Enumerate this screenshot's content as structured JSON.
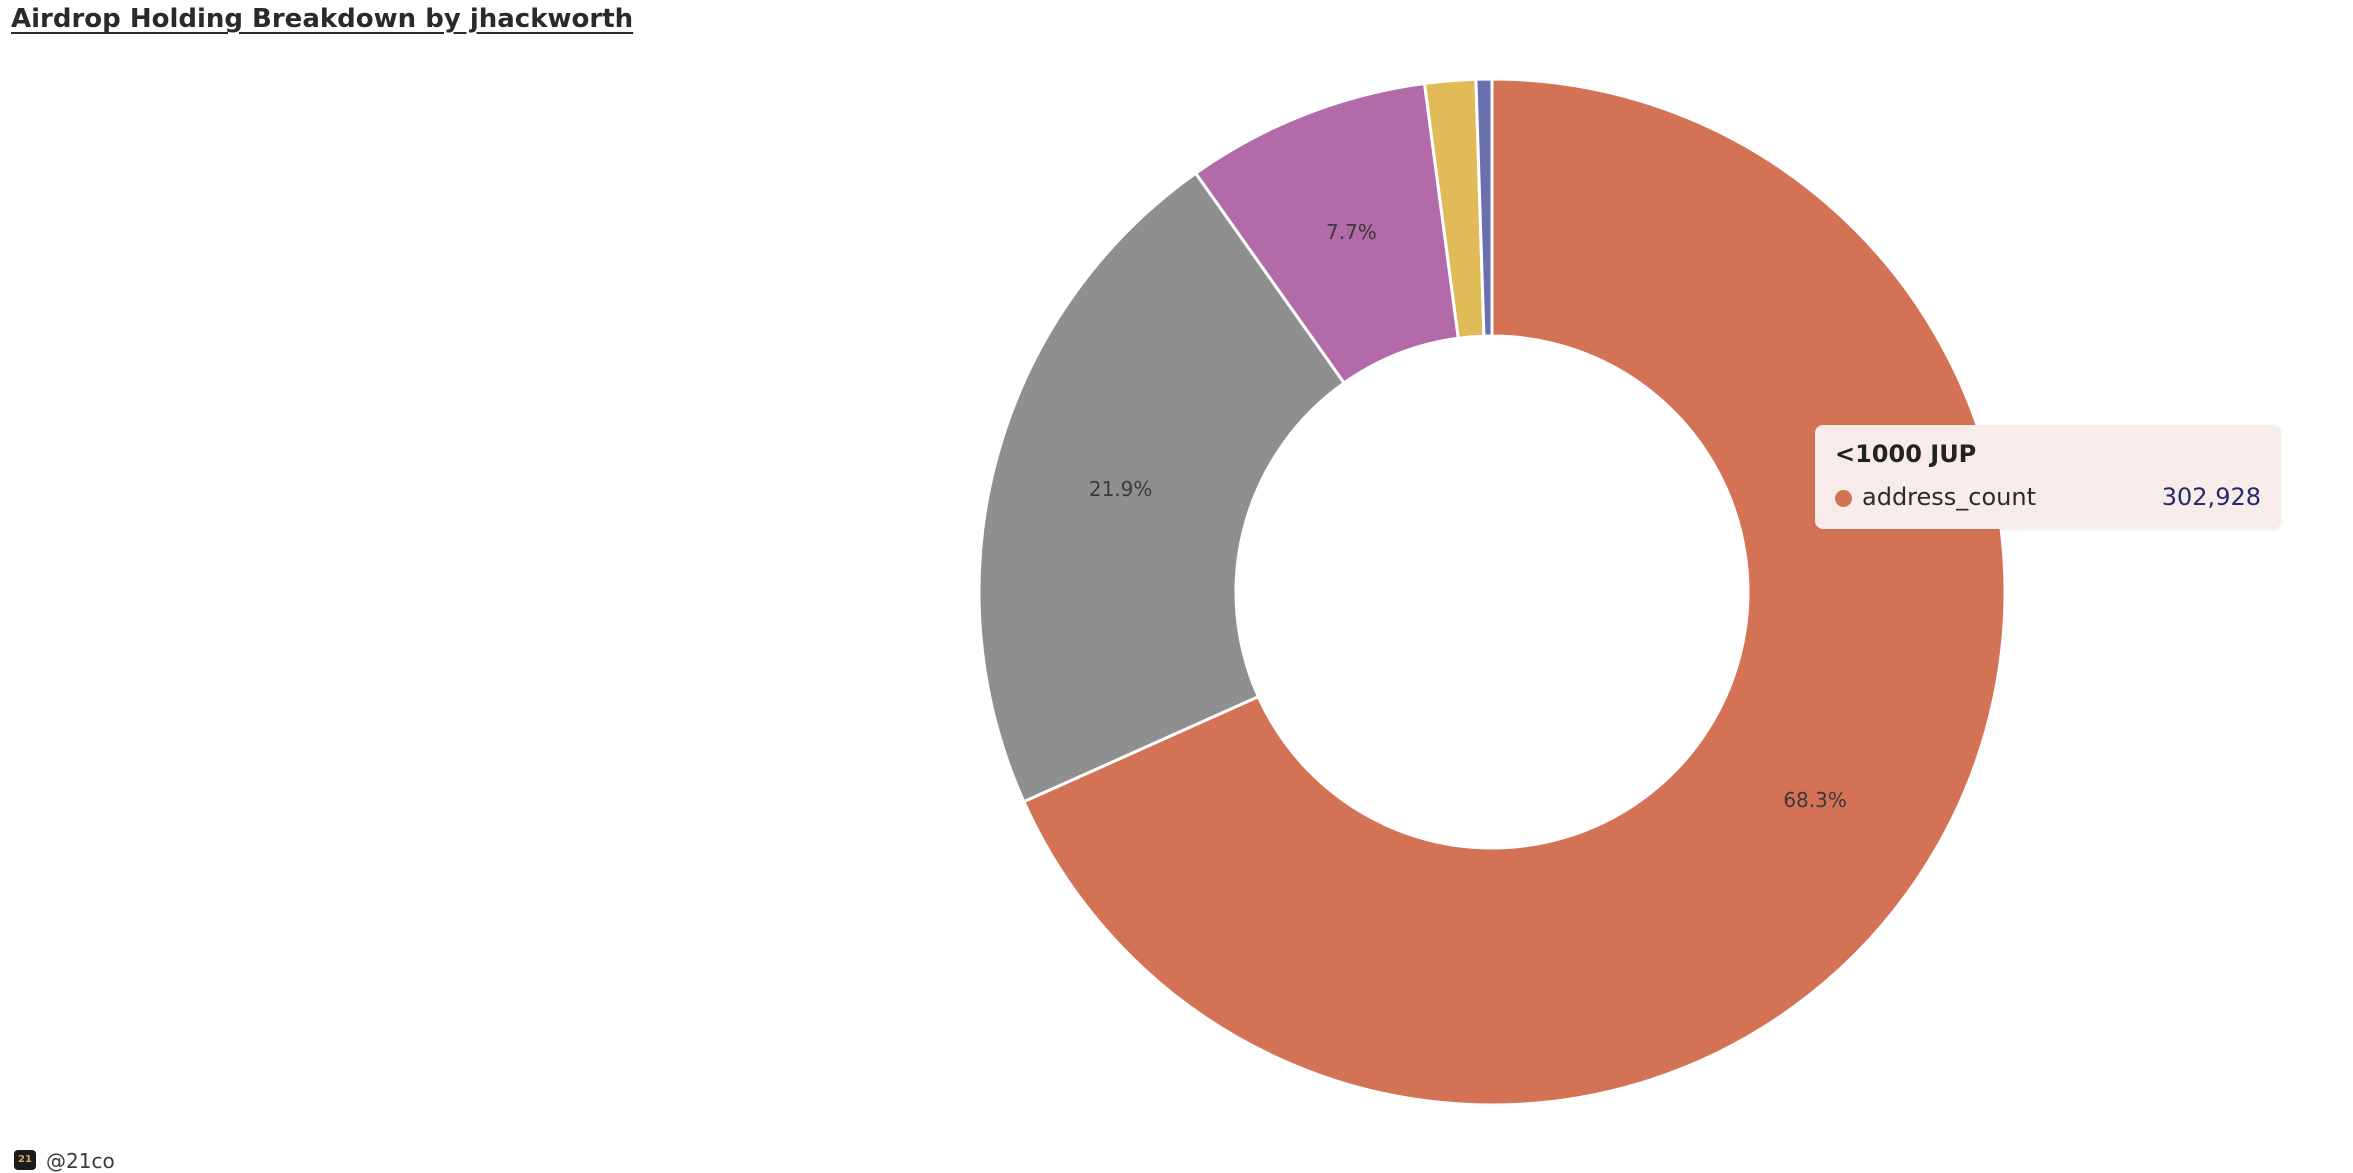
{
  "header": {
    "title": "Airdrop Holding Breakdown by jhackworth"
  },
  "chart_data": {
    "type": "pie",
    "variant": "donut",
    "series_name": "address_count",
    "slices": [
      {
        "label": "<1000 JUP",
        "value": 302928,
        "percent": 68.3,
        "percent_label": "68.3%",
        "color": "#d37254"
      },
      {
        "label": "",
        "value": null,
        "percent": 21.9,
        "percent_label": "21.9%",
        "color": "#8f8f8f"
      },
      {
        "label": "",
        "value": null,
        "percent": 7.7,
        "percent_label": "7.7%",
        "color": "#b26ba8"
      },
      {
        "label": "",
        "value": null,
        "percent": 1.6,
        "percent_label": "",
        "color": "#e1bb57"
      },
      {
        "label": "",
        "value": null,
        "percent": 0.5,
        "percent_label": "",
        "color": "#6b6fae"
      }
    ]
  },
  "tooltip": {
    "category": "<1000 JUP",
    "series": "address_count",
    "value": "302,928",
    "dot_color": "#d37254"
  },
  "footer": {
    "logo_text": "21",
    "handle": "@21co"
  }
}
